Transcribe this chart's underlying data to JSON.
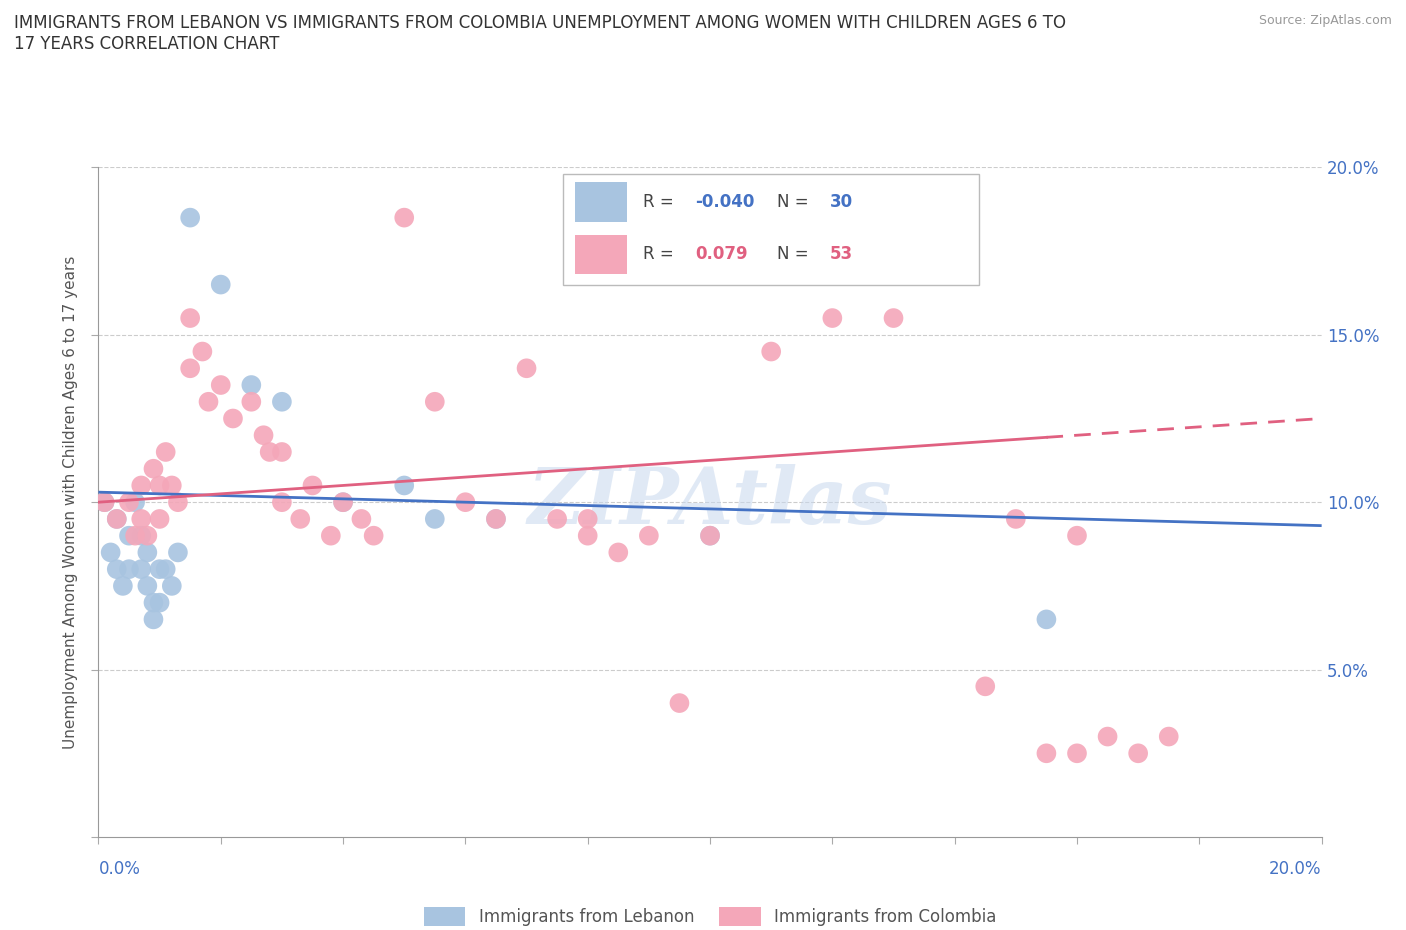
{
  "title": "IMMIGRANTS FROM LEBANON VS IMMIGRANTS FROM COLOMBIA UNEMPLOYMENT AMONG WOMEN WITH CHILDREN AGES 6 TO\n17 YEARS CORRELATION CHART",
  "source_text": "Source: ZipAtlas.com",
  "ylabel": "Unemployment Among Women with Children Ages 6 to 17 years",
  "xlim": [
    0.0,
    0.2
  ],
  "ylim": [
    0.0,
    0.2
  ],
  "yticks": [
    0.0,
    0.05,
    0.1,
    0.15,
    0.2
  ],
  "ytick_labels": [
    "",
    "5.0%",
    "10.0%",
    "15.0%",
    "20.0%"
  ],
  "watermark": "ZIPAtlas",
  "lebanon_color": "#a8c4e0",
  "colombia_color": "#f4a7b9",
  "lebanon_line_color": "#4472c4",
  "colombia_line_color": "#e06080",
  "legend_r_lebanon": "-0.040",
  "legend_n_lebanon": "30",
  "legend_r_colombia": "0.079",
  "legend_n_colombia": "53",
  "lebanon_x": [
    0.001,
    0.002,
    0.003,
    0.003,
    0.004,
    0.005,
    0.005,
    0.006,
    0.007,
    0.007,
    0.008,
    0.008,
    0.009,
    0.009,
    0.01,
    0.01,
    0.011,
    0.012,
    0.013,
    0.015,
    0.02,
    0.025,
    0.03,
    0.04,
    0.05,
    0.055,
    0.065,
    0.08,
    0.1,
    0.155
  ],
  "lebanon_y": [
    0.1,
    0.085,
    0.095,
    0.08,
    0.075,
    0.09,
    0.08,
    0.1,
    0.09,
    0.08,
    0.085,
    0.075,
    0.07,
    0.065,
    0.08,
    0.07,
    0.08,
    0.075,
    0.085,
    0.185,
    0.165,
    0.135,
    0.13,
    0.1,
    0.105,
    0.095,
    0.095,
    0.17,
    0.09,
    0.065
  ],
  "colombia_x": [
    0.001,
    0.003,
    0.005,
    0.006,
    0.007,
    0.007,
    0.008,
    0.009,
    0.01,
    0.01,
    0.011,
    0.012,
    0.013,
    0.015,
    0.015,
    0.017,
    0.018,
    0.02,
    0.022,
    0.025,
    0.027,
    0.028,
    0.03,
    0.03,
    0.033,
    0.035,
    0.038,
    0.04,
    0.043,
    0.045,
    0.05,
    0.055,
    0.06,
    0.065,
    0.07,
    0.075,
    0.08,
    0.08,
    0.085,
    0.09,
    0.095,
    0.1,
    0.11,
    0.12,
    0.13,
    0.145,
    0.15,
    0.155,
    0.16,
    0.16,
    0.165,
    0.17,
    0.175
  ],
  "colombia_y": [
    0.1,
    0.095,
    0.1,
    0.09,
    0.105,
    0.095,
    0.09,
    0.11,
    0.105,
    0.095,
    0.115,
    0.105,
    0.1,
    0.155,
    0.14,
    0.145,
    0.13,
    0.135,
    0.125,
    0.13,
    0.12,
    0.115,
    0.115,
    0.1,
    0.095,
    0.105,
    0.09,
    0.1,
    0.095,
    0.09,
    0.185,
    0.13,
    0.1,
    0.095,
    0.14,
    0.095,
    0.095,
    0.09,
    0.085,
    0.09,
    0.04,
    0.09,
    0.145,
    0.155,
    0.155,
    0.045,
    0.095,
    0.025,
    0.025,
    0.09,
    0.03,
    0.025,
    0.03
  ]
}
